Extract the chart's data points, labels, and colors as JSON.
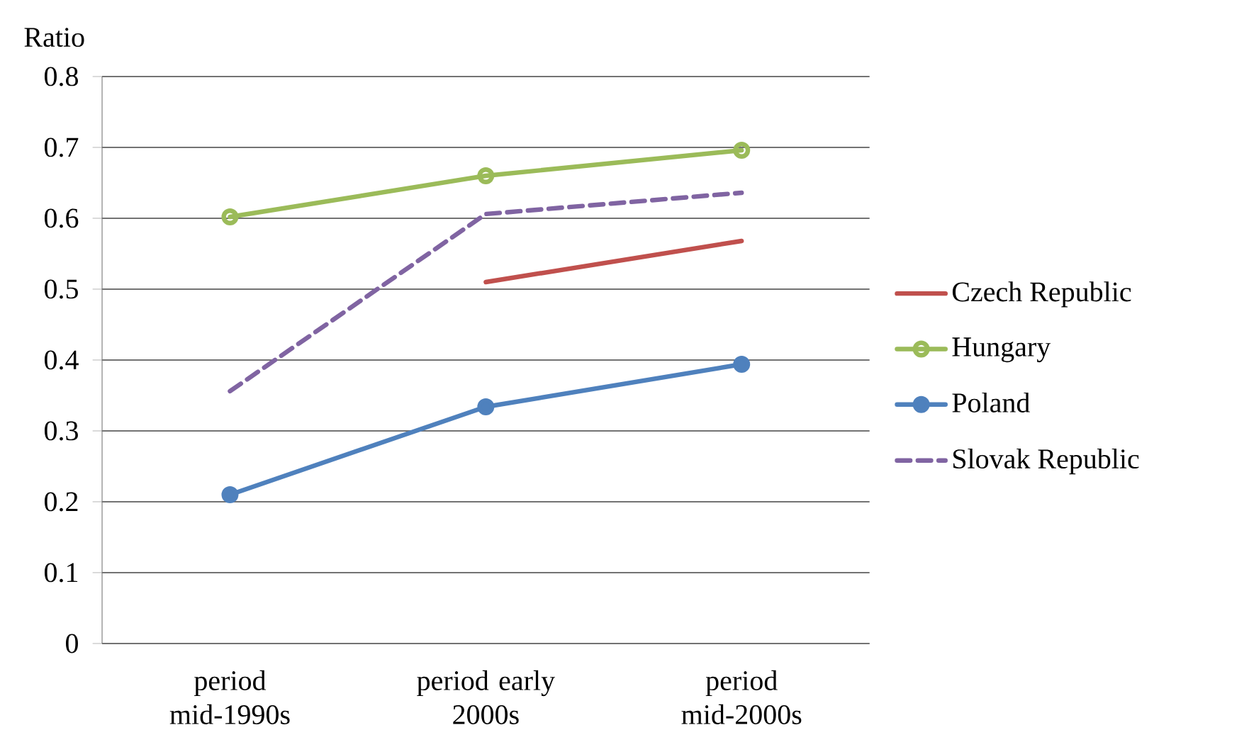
{
  "chart_data": {
    "type": "line",
    "ylabel": "Ratio",
    "categories": [
      "period mid-1990s",
      "period early 2000s",
      "period mid-2000s"
    ],
    "series": [
      {
        "name": "Czech Republic",
        "color": "#c0504d",
        "values": [
          null,
          0.51,
          0.568
        ],
        "marker": "none",
        "line_style": "solid"
      },
      {
        "name": "Hungary",
        "color": "#9bbb59",
        "values": [
          0.602,
          0.66,
          0.696
        ],
        "marker": "open circle",
        "line_style": "solid"
      },
      {
        "name": "Poland",
        "color": "#4f81bd",
        "values": [
          0.21,
          0.334,
          0.394
        ],
        "marker": "circle",
        "line_style": "solid"
      },
      {
        "name": "Slovak Republic",
        "color": "#8064a2",
        "values": [
          0.356,
          0.606,
          0.636
        ],
        "marker": "none",
        "line_style": "dashed"
      }
    ],
    "ylim": [
      0,
      0.8
    ],
    "yticks": [
      0,
      0.1,
      0.2,
      0.3,
      0.4,
      0.5,
      0.6,
      0.7,
      0.8
    ],
    "grid": "y",
    "legend": "right"
  }
}
